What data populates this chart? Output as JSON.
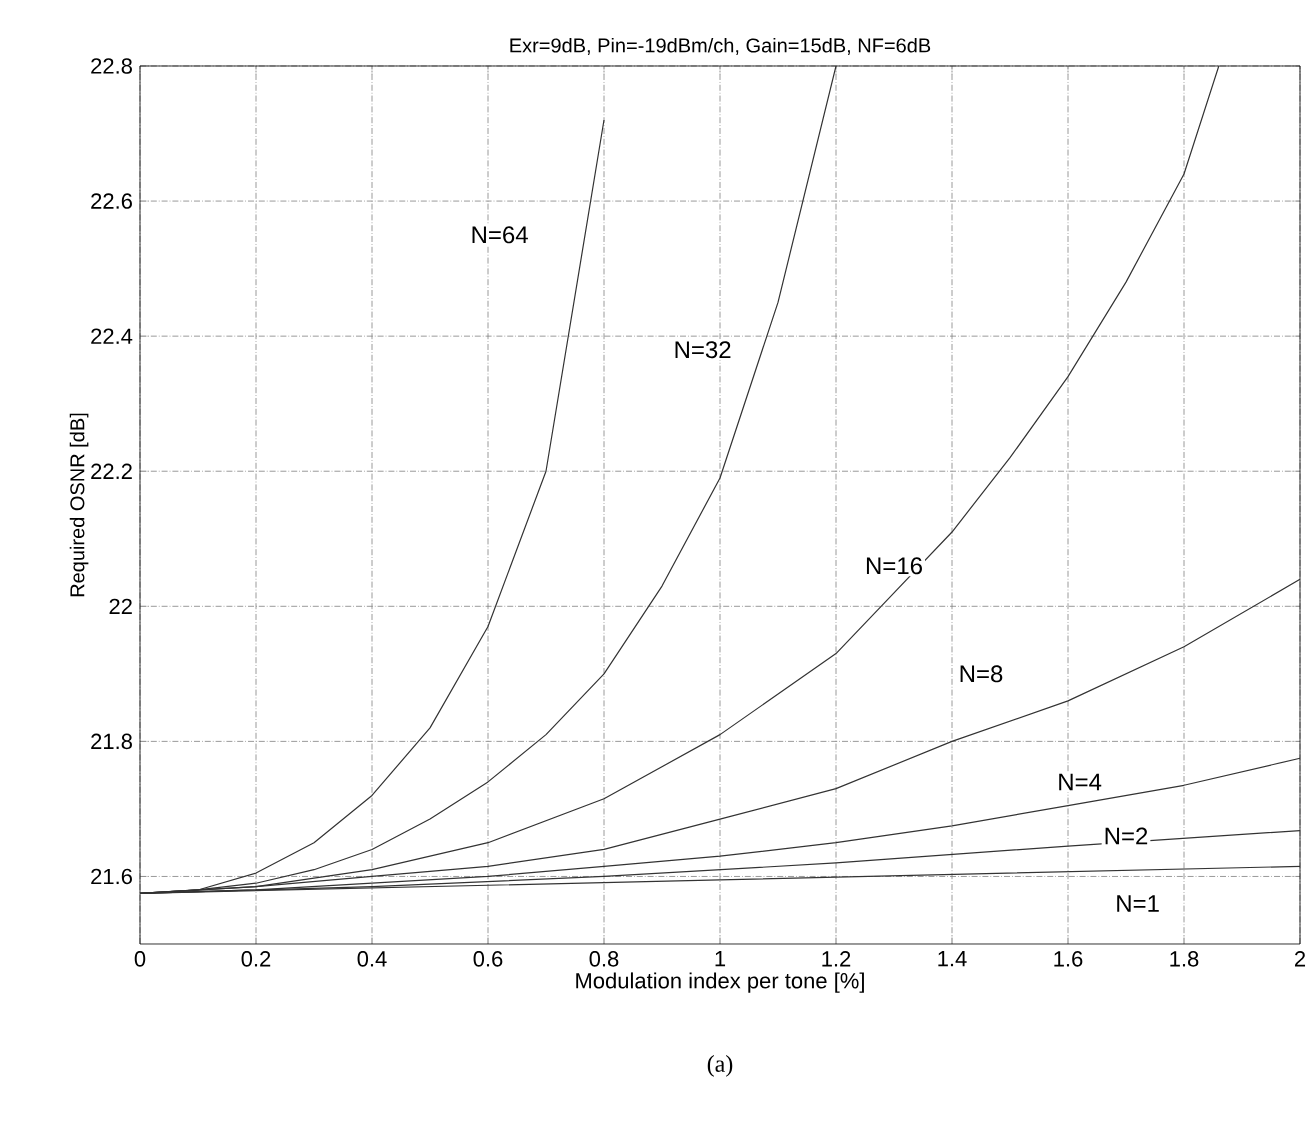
{
  "chart_data": {
    "type": "line",
    "title": "Exr=9dB, Pin=-19dBm/ch, Gain=15dB, NF=6dB",
    "xlabel": "Modulation index per tone [%]",
    "ylabel": "Required OSNR [dB]",
    "xlim": [
      0,
      2
    ],
    "ylim": [
      21.5,
      22.8
    ],
    "xticks": [
      0,
      0.2,
      0.4,
      0.6,
      0.8,
      1,
      1.2,
      1.4,
      1.6,
      1.8,
      2
    ],
    "yticks": [
      21.6,
      21.8,
      22,
      22.2,
      22.4,
      22.6,
      22.8
    ],
    "grid": true,
    "marker": "none",
    "series": [
      {
        "name": "N=64",
        "color": "#333333",
        "x": [
          0,
          0.1,
          0.2,
          0.3,
          0.4,
          0.5,
          0.6,
          0.7,
          0.8
        ],
        "values": [
          21.575,
          21.58,
          21.605,
          21.65,
          21.72,
          21.82,
          21.97,
          22.2,
          22.72
        ]
      },
      {
        "name": "N=32",
        "color": "#333333",
        "x": [
          0,
          0.1,
          0.2,
          0.3,
          0.4,
          0.5,
          0.6,
          0.7,
          0.8,
          0.9,
          1.0,
          1.1,
          1.2
        ],
        "values": [
          21.575,
          21.58,
          21.59,
          21.61,
          21.64,
          21.685,
          21.74,
          21.81,
          21.9,
          22.03,
          22.19,
          22.45,
          22.8
        ]
      },
      {
        "name": "N=16",
        "color": "#333333",
        "x": [
          0,
          0.2,
          0.4,
          0.6,
          0.8,
          1.0,
          1.2,
          1.3,
          1.4,
          1.5,
          1.6,
          1.7,
          1.8,
          1.86
        ],
        "values": [
          21.575,
          21.585,
          21.61,
          21.65,
          21.715,
          21.81,
          21.93,
          22.02,
          22.11,
          22.22,
          22.34,
          22.48,
          22.64,
          22.8
        ]
      },
      {
        "name": "N=8",
        "color": "#333333",
        "x": [
          0,
          0.2,
          0.4,
          0.6,
          0.8,
          1.0,
          1.2,
          1.4,
          1.6,
          1.8,
          2.0
        ],
        "values": [
          21.575,
          21.585,
          21.6,
          21.615,
          21.64,
          21.685,
          21.73,
          21.8,
          21.86,
          21.94,
          22.04
        ]
      },
      {
        "name": "N=4",
        "color": "#333333",
        "x": [
          0,
          0.2,
          0.4,
          0.6,
          0.8,
          1.0,
          1.2,
          1.4,
          1.6,
          1.8,
          2.0
        ],
        "values": [
          21.575,
          21.58,
          21.59,
          21.6,
          21.615,
          21.63,
          21.65,
          21.675,
          21.705,
          21.735,
          21.775
        ]
      },
      {
        "name": "N=2",
        "color": "#333333",
        "x": [
          0,
          0.4,
          0.8,
          1.2,
          1.6,
          2.0
        ],
        "values": [
          21.575,
          21.585,
          21.6,
          21.62,
          21.645,
          21.668
        ]
      },
      {
        "name": "N=1",
        "color": "#333333",
        "x": [
          0,
          1.0,
          2.0
        ],
        "values": [
          21.575,
          21.595,
          21.615
        ]
      }
    ],
    "annotations": [
      "(a)"
    ]
  }
}
